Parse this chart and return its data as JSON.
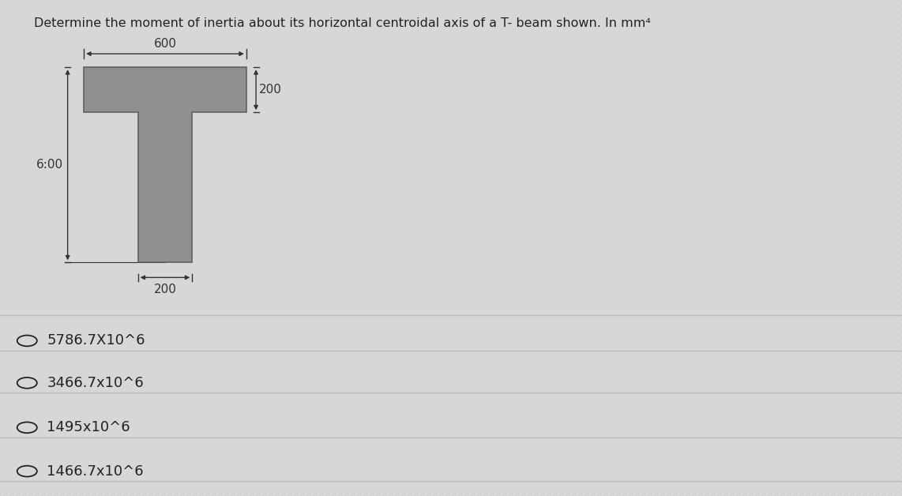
{
  "title": "Determine the moment of inertia about its horizontal centroidal axis of a T- beam shown. In mm⁴",
  "title_fontsize": 11.5,
  "background_color": "#d8d8d8",
  "shape_color": "#909090",
  "shape_edge_color": "#606060",
  "dim_600_label": "600",
  "dim_200_flange_label": "200",
  "dim_600_height_label": "6:00",
  "dim_200_web_label": "200",
  "options": [
    "5786.7X10^6",
    "3466.7x10^6",
    "1495x10^6",
    "1466.7x10^6"
  ],
  "option_fontsize": 13,
  "line_color": "#bbbbbb",
  "text_color": "#222222",
  "annotation_color": "#333333",
  "annotation_fontsize": 11
}
